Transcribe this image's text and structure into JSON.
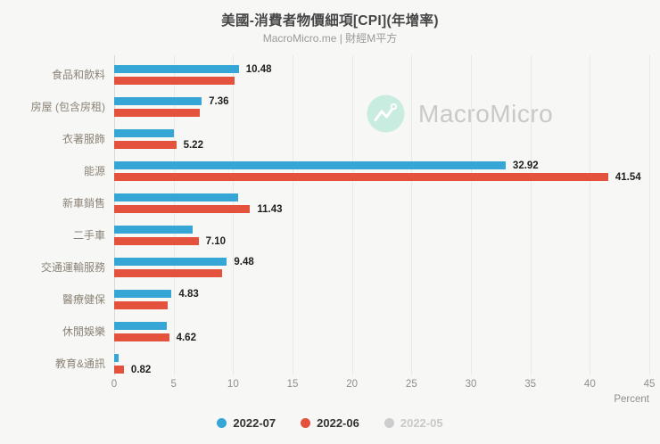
{
  "chart_data": {
    "type": "bar",
    "orientation": "horizontal",
    "title": "美國-消費者物價細項[CPI](年增率)",
    "subtitle": "MacroMicro.me | 財經M平方",
    "xlabel": "Percent",
    "xlim": [
      0,
      45
    ],
    "xticks": [
      0,
      5,
      10,
      15,
      20,
      25,
      30,
      35,
      40,
      45
    ],
    "grid": "vertical",
    "legend_position": "bottom",
    "categories": [
      "食品和飲料",
      "房屋 (包含房租)",
      "衣著服飾",
      "能源",
      "新車銷售",
      "二手車",
      "交通運輸服務",
      "醫療健保",
      "休閒娛樂",
      "教育&通訊"
    ],
    "series": [
      {
        "name": "2022-07",
        "color": "#36a6d7",
        "visible": true,
        "values": [
          10.48,
          7.36,
          5.0,
          32.92,
          10.4,
          6.6,
          9.48,
          4.83,
          4.4,
          0.4
        ]
      },
      {
        "name": "2022-06",
        "color": "#e4523d",
        "visible": true,
        "values": [
          10.1,
          7.2,
          5.22,
          41.54,
          11.43,
          7.1,
          9.1,
          4.5,
          4.62,
          0.82
        ]
      },
      {
        "name": "2022-05",
        "color": "#cdcdcd",
        "visible": false,
        "values": []
      }
    ],
    "data_labels": [
      {
        "category_index": 0,
        "series_index": 0,
        "text": "10.48"
      },
      {
        "category_index": 1,
        "series_index": 0,
        "text": "7.36"
      },
      {
        "category_index": 2,
        "series_index": 1,
        "text": "5.22"
      },
      {
        "category_index": 3,
        "series_index": 0,
        "text": "32.92"
      },
      {
        "category_index": 3,
        "series_index": 1,
        "text": "41.54"
      },
      {
        "category_index": 4,
        "series_index": 1,
        "text": "11.43"
      },
      {
        "category_index": 5,
        "series_index": 1,
        "text": "7.10"
      },
      {
        "category_index": 6,
        "series_index": 0,
        "text": "9.48"
      },
      {
        "category_index": 7,
        "series_index": 0,
        "text": "4.83"
      },
      {
        "category_index": 8,
        "series_index": 1,
        "text": "4.62"
      },
      {
        "category_index": 9,
        "series_index": 1,
        "text": "0.82"
      }
    ]
  },
  "watermark": {
    "icon": "macromicro-logo-icon",
    "text": "MacroMicro",
    "circle_color": "#c9ece1",
    "text_color": "#c9c9c9"
  },
  "colors": {
    "background": "#f7f7f5",
    "gridline": "#e9e9e7",
    "axis_line": "#d9d9d6",
    "category_label": "#8b8376",
    "data_label": "#1f1f1f",
    "tick_label": "#8f8f8f",
    "legend_active": "#333333",
    "legend_disabled": "#c9c9c9"
  }
}
